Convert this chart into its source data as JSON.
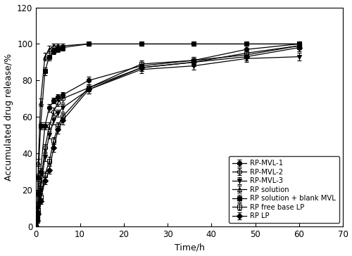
{
  "xlabel": "Time/h",
  "ylabel": "Accumulated drug release/%",
  "xlim": [
    0,
    70
  ],
  "ylim": [
    0,
    120
  ],
  "xticks": [
    0,
    10,
    20,
    30,
    40,
    50,
    60,
    70
  ],
  "yticks": [
    0,
    20,
    40,
    60,
    80,
    100,
    120
  ],
  "series": [
    {
      "label": "RP-MVL-1",
      "color": "black",
      "marker": "o",
      "fillstyle": "full",
      "linestyle": "-",
      "x": [
        0,
        0.25,
        0.5,
        1,
        2,
        3,
        4,
        5,
        6,
        12,
        24,
        36,
        48,
        60
      ],
      "y": [
        0,
        5,
        18,
        30,
        55,
        65,
        69,
        71,
        72,
        80,
        88,
        91,
        97,
        100
      ],
      "yerr": [
        0,
        1,
        1.5,
        2,
        2,
        2,
        1.5,
        1.5,
        1.5,
        2,
        2,
        2,
        2,
        1.5
      ]
    },
    {
      "label": "RP-MVL-2",
      "color": "black",
      "marker": "o",
      "fillstyle": "none",
      "linestyle": "-",
      "x": [
        0,
        0.25,
        0.5,
        1,
        2,
        3,
        4,
        5,
        6,
        12,
        24,
        36,
        48,
        60
      ],
      "y": [
        0,
        4,
        12,
        23,
        43,
        55,
        63,
        68,
        70,
        76,
        87,
        90,
        95,
        99
      ],
      "yerr": [
        0,
        1,
        1.5,
        2,
        2,
        2,
        2,
        2,
        2,
        2,
        2,
        2,
        2,
        2
      ]
    },
    {
      "label": "RP-MVL-3",
      "color": "black",
      "marker": "v",
      "fillstyle": "full",
      "linestyle": "-",
      "x": [
        0,
        0.25,
        0.5,
        1,
        2,
        3,
        4,
        5,
        6,
        12,
        24,
        36,
        48,
        60
      ],
      "y": [
        0,
        3,
        10,
        20,
        38,
        50,
        58,
        62,
        65,
        75,
        86,
        88,
        92,
        93
      ],
      "yerr": [
        0,
        1,
        1.5,
        2,
        2,
        2,
        2,
        2,
        2,
        2,
        2,
        2,
        2,
        2
      ]
    },
    {
      "label": "RP solution",
      "color": "black",
      "marker": "^",
      "fillstyle": "none",
      "linestyle": "-",
      "x": [
        0,
        0.25,
        0.5,
        1,
        2,
        3,
        4,
        5,
        6,
        12,
        24,
        36,
        48,
        60
      ],
      "y": [
        0,
        8,
        35,
        68,
        93,
        97,
        99,
        99,
        99,
        100,
        100,
        100,
        100,
        100
      ],
      "yerr": [
        0,
        1,
        2,
        2,
        2,
        2,
        1,
        1,
        1,
        1,
        1,
        1,
        1,
        1
      ]
    },
    {
      "label": "RP solution + blank MVL",
      "color": "black",
      "marker": "s",
      "fillstyle": "full",
      "linestyle": "-",
      "x": [
        0,
        0.25,
        0.5,
        1,
        2,
        3,
        4,
        5,
        6,
        12,
        24,
        36,
        48,
        60
      ],
      "y": [
        0,
        6,
        27,
        55,
        85,
        93,
        96,
        97,
        98,
        100,
        100,
        100,
        100,
        100
      ],
      "yerr": [
        0,
        1,
        2,
        2,
        2,
        2,
        1.5,
        1.5,
        1.5,
        1,
        1,
        1,
        1,
        1
      ]
    },
    {
      "label": "RP free base LP",
      "color": "black",
      "marker": "s",
      "fillstyle": "none",
      "linestyle": "-",
      "x": [
        0,
        0.25,
        0.5,
        1,
        2,
        3,
        4,
        5,
        6,
        12,
        24,
        36,
        48,
        60
      ],
      "y": [
        0,
        4,
        9,
        16,
        28,
        36,
        47,
        55,
        60,
        76,
        89,
        91,
        94,
        99
      ],
      "yerr": [
        0,
        1,
        1,
        1.5,
        2,
        2,
        2,
        2,
        2,
        2,
        2,
        2,
        2,
        2
      ]
    },
    {
      "label": "RP LP",
      "color": "black",
      "marker": "D",
      "fillstyle": "full",
      "linestyle": "-",
      "x": [
        0,
        0.25,
        0.5,
        1,
        2,
        3,
        4,
        5,
        6,
        12,
        24,
        36,
        48,
        60
      ],
      "y": [
        0,
        3,
        7,
        14,
        25,
        31,
        43,
        53,
        58,
        75,
        87,
        90,
        93,
        98
      ],
      "yerr": [
        0,
        1,
        1,
        1.5,
        2,
        2,
        2,
        2,
        2,
        2,
        2,
        2,
        2,
        2
      ]
    }
  ]
}
